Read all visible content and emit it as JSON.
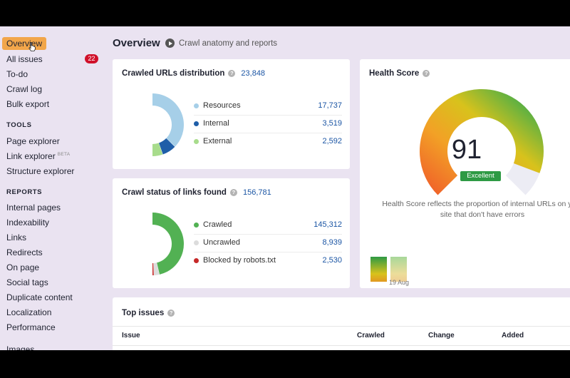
{
  "sidebar": {
    "items": [
      {
        "label": "Overview",
        "active": true
      },
      {
        "label": "All issues",
        "badge": "22"
      },
      {
        "label": "To-do"
      },
      {
        "label": "Crawl log"
      },
      {
        "label": "Bulk export"
      }
    ],
    "tools_heading": "TOOLS",
    "tools": [
      {
        "label": "Page explorer"
      },
      {
        "label": "Link explorer",
        "tag": "BETA"
      },
      {
        "label": "Structure explorer"
      }
    ],
    "reports_heading": "REPORTS",
    "reports": [
      {
        "label": "Internal pages"
      },
      {
        "label": "Indexability"
      },
      {
        "label": "Links"
      },
      {
        "label": "Redirects"
      },
      {
        "label": "On page"
      },
      {
        "label": "Social tags"
      },
      {
        "label": "Duplicate content"
      },
      {
        "label": "Localization"
      },
      {
        "label": "Performance"
      },
      {
        "label": "Images"
      }
    ]
  },
  "header": {
    "title": "Overview",
    "subtitle_link": "Crawl anatomy and reports"
  },
  "crawled_urls": {
    "title": "Crawled URLs distribution",
    "total": "23,848",
    "legend": [
      {
        "label": "Resources",
        "value": "17,737",
        "color": "#a6cfe8"
      },
      {
        "label": "Internal",
        "value": "3,519",
        "color": "#1f5ea8"
      },
      {
        "label": "External",
        "value": "2,592",
        "color": "#a8dc8c"
      }
    ]
  },
  "crawl_status": {
    "title": "Crawl status of links found",
    "total": "156,781",
    "legend": [
      {
        "label": "Crawled",
        "value": "145,312",
        "color": "#52b153"
      },
      {
        "label": "Uncrawled",
        "value": "8,939",
        "color": "#dcdcdc"
      },
      {
        "label": "Blocked by robots.txt",
        "value": "2,530",
        "color": "#c62828"
      }
    ]
  },
  "health": {
    "title": "Health Score",
    "score": "91",
    "score_value": 91,
    "badge": "Excellent",
    "description": "Health Score reflects the proportion of internal URLs on your site that don't have errors",
    "date_label": "19 Aug"
  },
  "top_issues": {
    "title": "Top issues",
    "columns": [
      "Issue",
      "Crawled",
      "Change",
      "Added"
    ]
  },
  "icons": {
    "help": "help-circle-icon",
    "play": "play-circle-icon",
    "cursor": "hand-pointer-icon"
  }
}
